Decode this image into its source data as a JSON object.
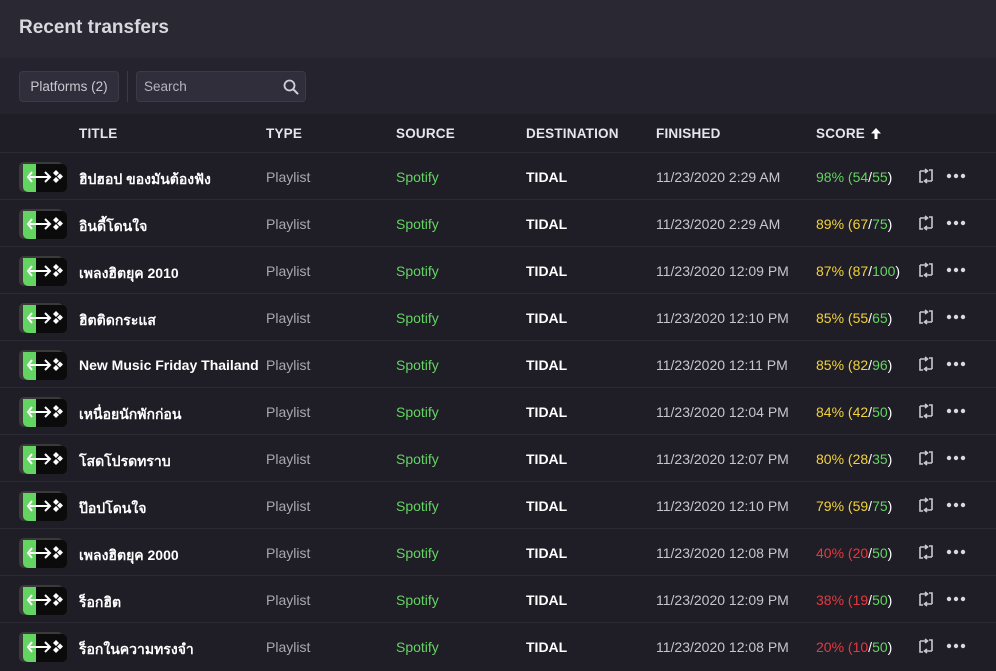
{
  "header": {
    "title": "Recent transfers"
  },
  "toolbar": {
    "platforms_label": "Platforms (2)",
    "search_placeholder": "Search"
  },
  "columns": {
    "title": "TITLE",
    "type": "TYPE",
    "source": "SOURCE",
    "destination": "DESTINATION",
    "finished": "FINISHED",
    "score": "SCORE"
  },
  "colors": {
    "high": "#63d462",
    "mid": "#f2d33b",
    "low": "#e6393e",
    "source": "#63d462",
    "thumb_green": "#63d462"
  },
  "icons": {
    "thumb": "spotify-to-tidal-icon",
    "retry": "retry-transfer-icon",
    "more": "more-options-icon",
    "sort": "sort-ascending-icon",
    "search": "search-icon"
  },
  "rows": [
    {
      "title": "ฮิปฮอป ของมันต้องฟัง",
      "type": "Playlist",
      "source": "Spotify",
      "destination": "TIDAL",
      "finished": "11/23/2020 2:29 AM",
      "pct": "98%",
      "matched": "54",
      "total": "55",
      "level": "high"
    },
    {
      "title": "อินดี้โดนใจ",
      "type": "Playlist",
      "source": "Spotify",
      "destination": "TIDAL",
      "finished": "11/23/2020 2:29 AM",
      "pct": "89%",
      "matched": "67",
      "total": "75",
      "level": "mid"
    },
    {
      "title": "เพลงฮิตยุค 2010",
      "type": "Playlist",
      "source": "Spotify",
      "destination": "TIDAL",
      "finished": "11/23/2020 12:09 PM",
      "pct": "87%",
      "matched": "87",
      "total": "100",
      "level": "mid"
    },
    {
      "title": "ฮิตติดกระแส",
      "type": "Playlist",
      "source": "Spotify",
      "destination": "TIDAL",
      "finished": "11/23/2020 12:10 PM",
      "pct": "85%",
      "matched": "55",
      "total": "65",
      "level": "mid"
    },
    {
      "title": "New Music Friday Thailand",
      "type": "Playlist",
      "source": "Spotify",
      "destination": "TIDAL",
      "finished": "11/23/2020 12:11 PM",
      "pct": "85%",
      "matched": "82",
      "total": "96",
      "level": "mid"
    },
    {
      "title": "เหนื่อยนักพักก่อน",
      "type": "Playlist",
      "source": "Spotify",
      "destination": "TIDAL",
      "finished": "11/23/2020 12:04 PM",
      "pct": "84%",
      "matched": "42",
      "total": "50",
      "level": "mid"
    },
    {
      "title": "โสดโปรดทราบ",
      "type": "Playlist",
      "source": "Spotify",
      "destination": "TIDAL",
      "finished": "11/23/2020 12:07 PM",
      "pct": "80%",
      "matched": "28",
      "total": "35",
      "level": "mid"
    },
    {
      "title": "ป๊อปโดนใจ",
      "type": "Playlist",
      "source": "Spotify",
      "destination": "TIDAL",
      "finished": "11/23/2020 12:10 PM",
      "pct": "79%",
      "matched": "59",
      "total": "75",
      "level": "mid"
    },
    {
      "title": "เพลงฮิตยุค 2000",
      "type": "Playlist",
      "source": "Spotify",
      "destination": "TIDAL",
      "finished": "11/23/2020 12:08 PM",
      "pct": "40%",
      "matched": "20",
      "total": "50",
      "level": "low"
    },
    {
      "title": "ร็อกฮิต",
      "type": "Playlist",
      "source": "Spotify",
      "destination": "TIDAL",
      "finished": "11/23/2020 12:09 PM",
      "pct": "38%",
      "matched": "19",
      "total": "50",
      "level": "low"
    },
    {
      "title": "ร็อกในความทรงจำ",
      "type": "Playlist",
      "source": "Spotify",
      "destination": "TIDAL",
      "finished": "11/23/2020 12:08 PM",
      "pct": "20%",
      "matched": "10",
      "total": "50",
      "level": "low"
    }
  ]
}
